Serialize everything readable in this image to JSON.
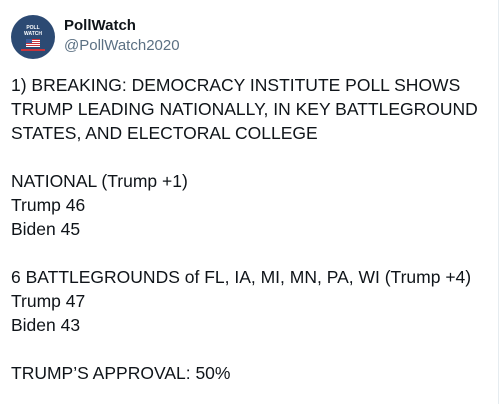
{
  "author": {
    "name": "PollWatch",
    "handle": "@PollWatch2020",
    "avatar_text": [
      "POLL",
      "WATCH"
    ]
  },
  "tweet": {
    "paragraphs": [
      [
        "1)  BREAKING: DEMOCRACY INSTITUTE POLL SHOWS",
        "TRUMP LEADING NATIONALLY, IN KEY BATTLEGROUND",
        "STATES, AND ELECTORAL COLLEGE"
      ],
      [
        "NATIONAL (Trump +1)",
        "Trump 46",
        "Biden 45"
      ],
      [
        "6 BATTLEGROUNDS of FL, IA, MI, MN, PA, WI (Trump +4)",
        "Trump 47",
        "Biden 43"
      ],
      [
        "TRUMP’S APPROVAL: 50%"
      ]
    ]
  }
}
